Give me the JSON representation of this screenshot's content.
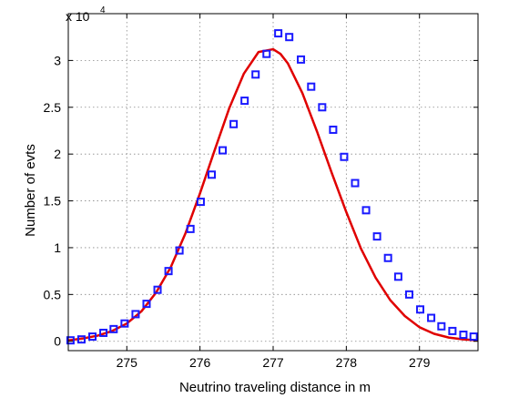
{
  "chart_data": {
    "type": "scatter",
    "xlabel": "Neutrino traveling distance in m",
    "ylabel": "Number of evts",
    "y_scale_label": "x 10",
    "y_scale_exponent": "4",
    "xlim": [
      274.2,
      279.8
    ],
    "ylim": [
      -0.1,
      3.5
    ],
    "x_ticks": [
      275,
      276,
      277,
      278,
      279
    ],
    "x_tick_labels": [
      "275",
      "276",
      "277",
      "278",
      "279"
    ],
    "y_ticks": [
      0,
      0.5,
      1,
      1.5,
      2,
      2.5,
      3
    ],
    "y_tick_labels": [
      "0",
      "0.5",
      "1",
      "1.5",
      "2",
      "2.5",
      "3"
    ],
    "grid": true,
    "colors": {
      "markers": "#1a1aff",
      "fit": "#e00000"
    },
    "series": [
      {
        "kind": "markers",
        "marker": "square",
        "x": [
          274.23,
          274.38,
          274.53,
          274.68,
          274.82,
          274.97,
          275.12,
          275.27,
          275.42,
          275.57,
          275.72,
          275.87,
          276.01,
          276.16,
          276.31,
          276.46,
          276.61,
          276.76,
          276.91,
          277.07,
          277.22,
          277.38,
          277.52,
          277.67,
          277.82,
          277.97,
          278.12,
          278.27,
          278.42,
          278.57,
          278.71,
          278.86,
          279.01,
          279.16,
          279.3,
          279.45,
          279.6,
          279.74
        ],
        "values": [
          0.01,
          0.02,
          0.05,
          0.09,
          0.13,
          0.19,
          0.29,
          0.4,
          0.55,
          0.75,
          0.97,
          1.2,
          1.49,
          1.78,
          2.04,
          2.32,
          2.57,
          2.85,
          3.07,
          3.29,
          3.25,
          3.01,
          2.72,
          2.5,
          2.26,
          1.97,
          1.69,
          1.4,
          1.12,
          0.89,
          0.69,
          0.5,
          0.34,
          0.25,
          0.16,
          0.11,
          0.07,
          0.05
        ]
      },
      {
        "kind": "line",
        "x": [
          274.2,
          274.4,
          274.6,
          274.8,
          275.0,
          275.2,
          275.4,
          275.6,
          275.8,
          276.0,
          276.2,
          276.4,
          276.6,
          276.8,
          277.0,
          277.1,
          277.2,
          277.4,
          277.6,
          277.8,
          278.0,
          278.2,
          278.4,
          278.6,
          278.8,
          279.0,
          279.2,
          279.4,
          279.6,
          279.8
        ],
        "values": [
          0.01,
          0.03,
          0.06,
          0.11,
          0.19,
          0.32,
          0.52,
          0.79,
          1.15,
          1.58,
          2.04,
          2.49,
          2.86,
          3.09,
          3.12,
          3.07,
          2.97,
          2.65,
          2.24,
          1.8,
          1.38,
          0.99,
          0.68,
          0.44,
          0.27,
          0.15,
          0.08,
          0.04,
          0.02,
          0.01
        ]
      }
    ]
  }
}
